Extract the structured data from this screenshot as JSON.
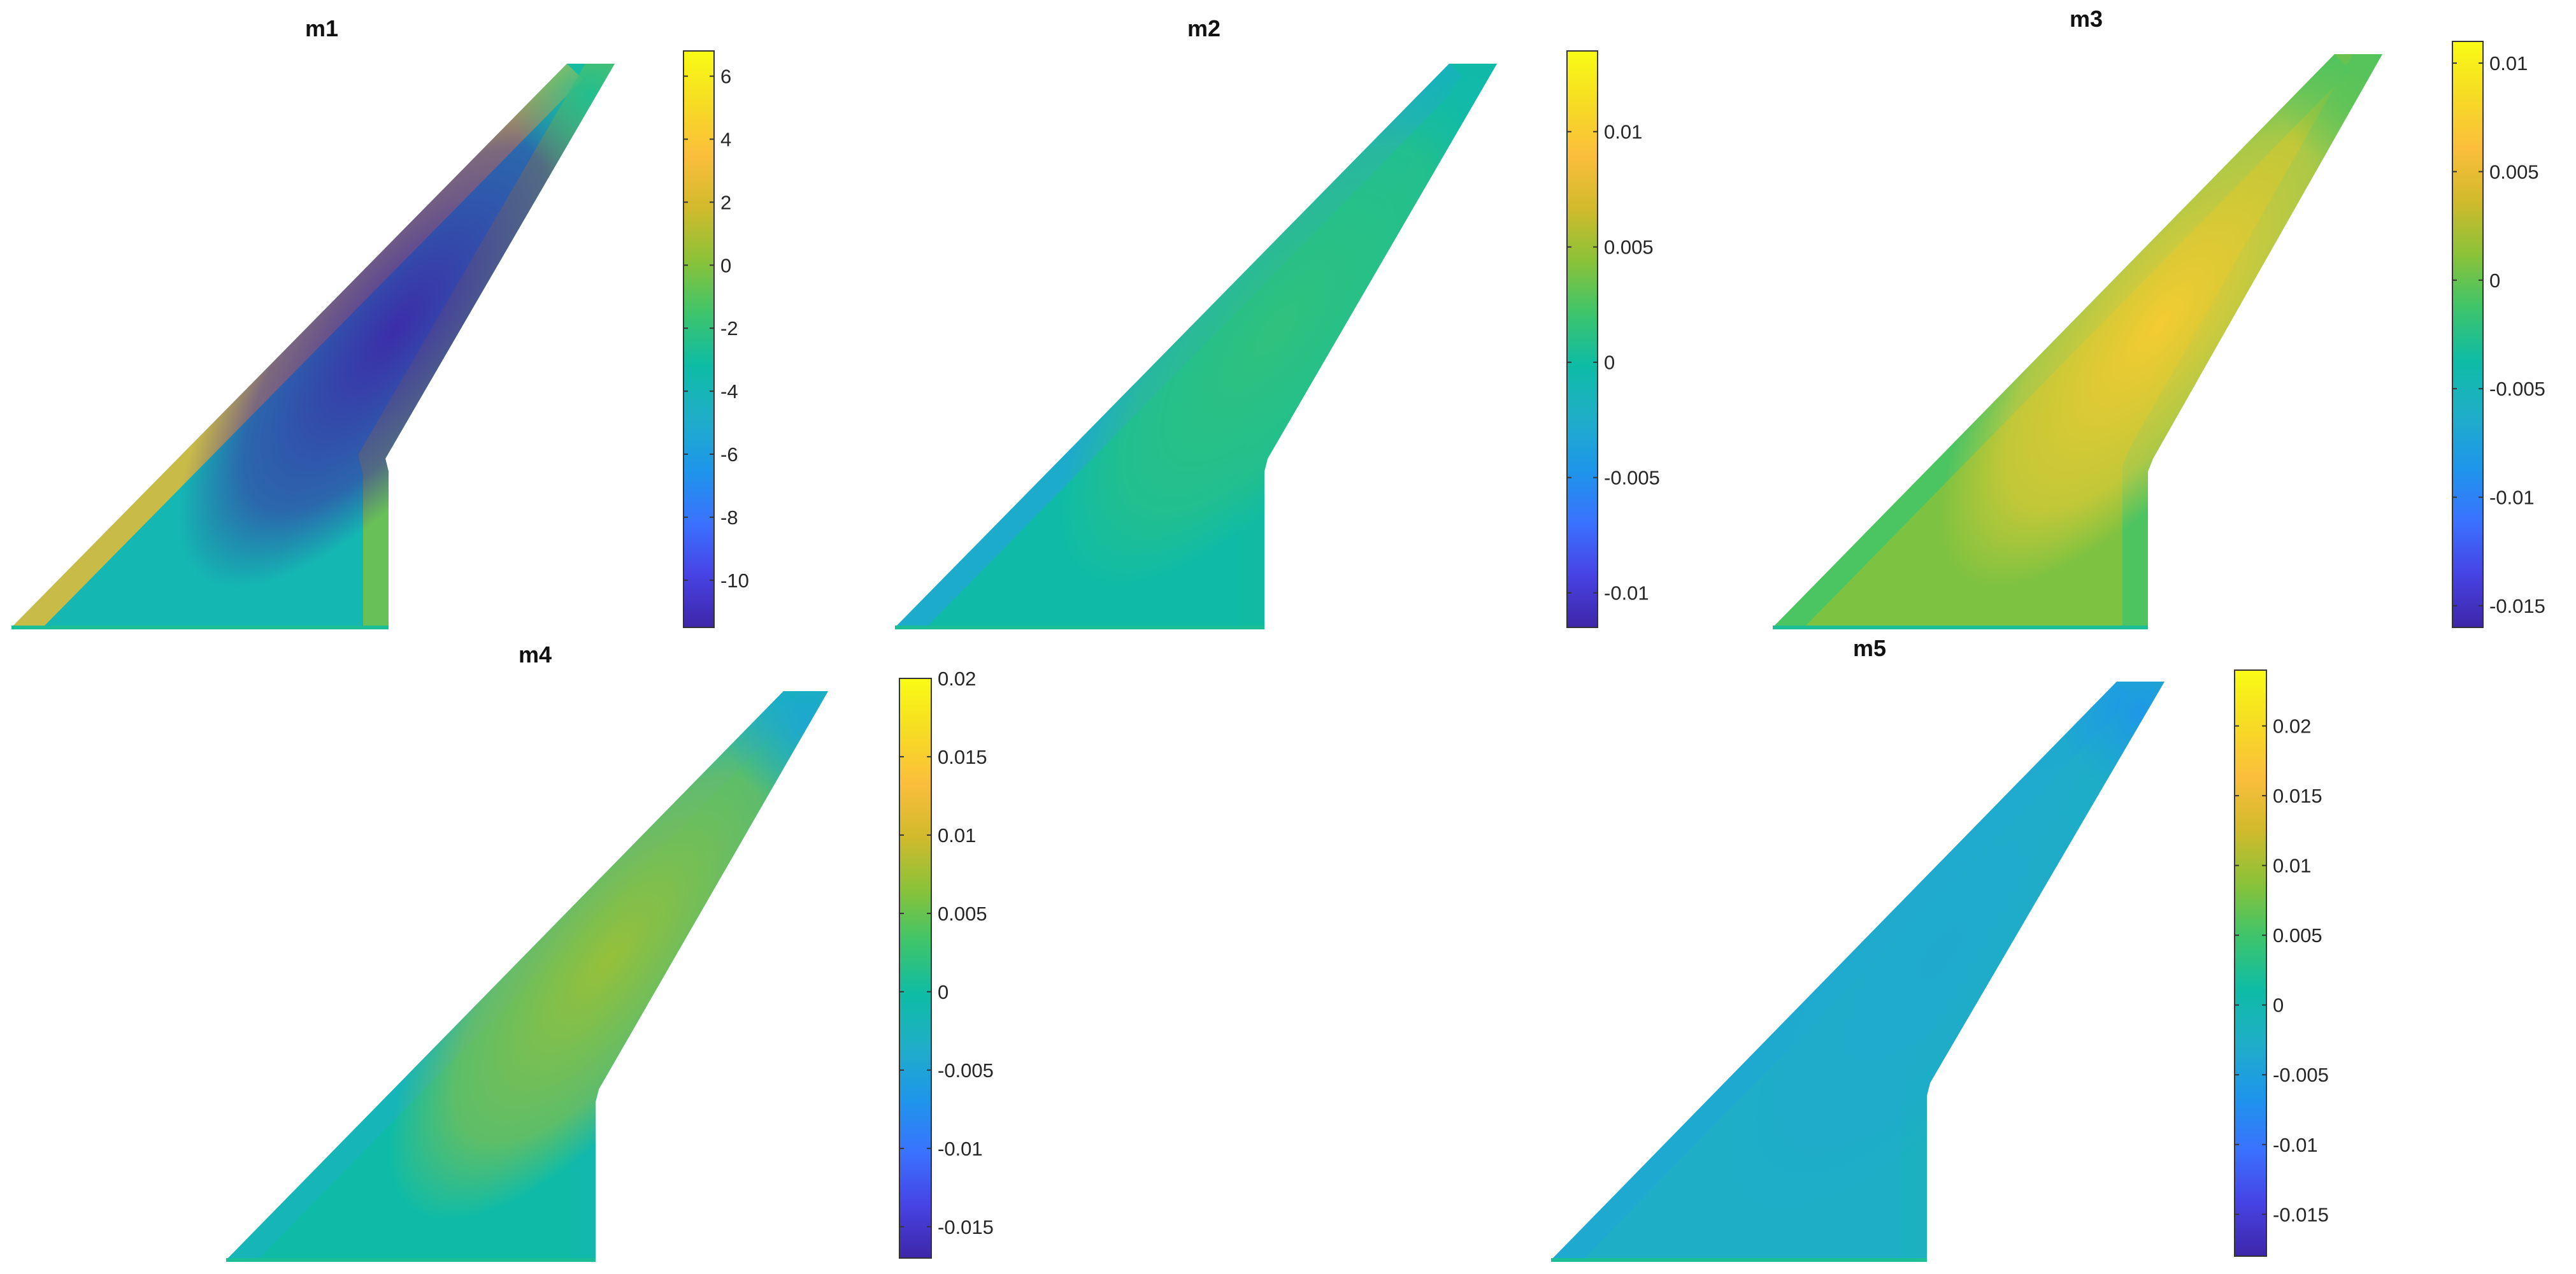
{
  "colormap": [
    "#3E26A8",
    "#4743E4",
    "#3A72FE",
    "#1E96EA",
    "#1FAEC8",
    "#0EBCA5",
    "#3EC46B",
    "#8BC238",
    "#D1BA2C",
    "#FBBE3C",
    "#F6DC23",
    "#F9FB15"
  ],
  "chart_data": [
    {
      "type": "heatmap",
      "title": "m1",
      "colorbar": {
        "range": [
          -11.5,
          6.8
        ],
        "ticks": [
          6,
          4,
          2,
          0,
          -2,
          -4,
          -6,
          -8,
          -10
        ],
        "tick_labels": [
          "6",
          "4",
          "2",
          "0",
          "-2",
          "-4",
          "-6",
          "-8",
          "-10"
        ]
      },
      "field": {
        "base": 0.42,
        "leading_edge": 0.78,
        "trailing_edge": 0.62,
        "center_band": 0.0,
        "tip": 0.48
      }
    },
    {
      "type": "heatmap",
      "title": "m2",
      "colorbar": {
        "range": [
          -0.0115,
          0.0135
        ],
        "ticks": [
          0.01,
          0.005,
          0,
          -0.005,
          -0.01
        ],
        "tick_labels": [
          "0.01",
          "0.005",
          "0",
          "-0.005",
          "-0.01"
        ]
      },
      "field": {
        "base": 0.45,
        "leading_edge": 0.34,
        "trailing_edge": 0.46,
        "center_band": 0.52,
        "tip": 0.44
      }
    },
    {
      "type": "heatmap",
      "title": "m3",
      "colorbar": {
        "range": [
          -0.016,
          0.011
        ],
        "ticks": [
          0.01,
          0.005,
          0,
          -0.005,
          -0.01,
          -0.015
        ],
        "tick_labels": [
          "0.01",
          "0.005",
          "0",
          "-0.005",
          "-0.01",
          "-0.015"
        ]
      },
      "field": {
        "base": 0.62,
        "leading_edge": 0.55,
        "trailing_edge": 0.55,
        "center_band": 0.86,
        "tip": 0.58
      }
    },
    {
      "type": "heatmap",
      "title": "m4",
      "colorbar": {
        "range": [
          -0.017,
          0.02
        ],
        "ticks": [
          0.02,
          0.015,
          0.01,
          0.005,
          0,
          -0.005,
          -0.01,
          -0.015
        ],
        "tick_labels": [
          "0.02",
          "0.015",
          "0.01",
          "0.005",
          "0",
          "-0.005",
          "-0.01",
          "-0.015"
        ]
      },
      "field": {
        "base": 0.45,
        "leading_edge": 0.4,
        "trailing_edge": 0.43,
        "center_band": 0.66,
        "tip": 0.33
      }
    },
    {
      "type": "heatmap",
      "title": "m5",
      "colorbar": {
        "range": [
          -0.018,
          0.024
        ],
        "ticks": [
          0.02,
          0.015,
          0.01,
          0.005,
          0,
          -0.005,
          -0.01,
          -0.015
        ],
        "tick_labels": [
          "0.02",
          "0.015",
          "0.01",
          "0.005",
          "0",
          "-0.005",
          "-0.01",
          "-0.015"
        ]
      },
      "field": {
        "base": 0.37,
        "leading_edge": 0.34,
        "trailing_edge": 0.39,
        "center_band": 0.35,
        "tip": 0.27
      }
    }
  ]
}
